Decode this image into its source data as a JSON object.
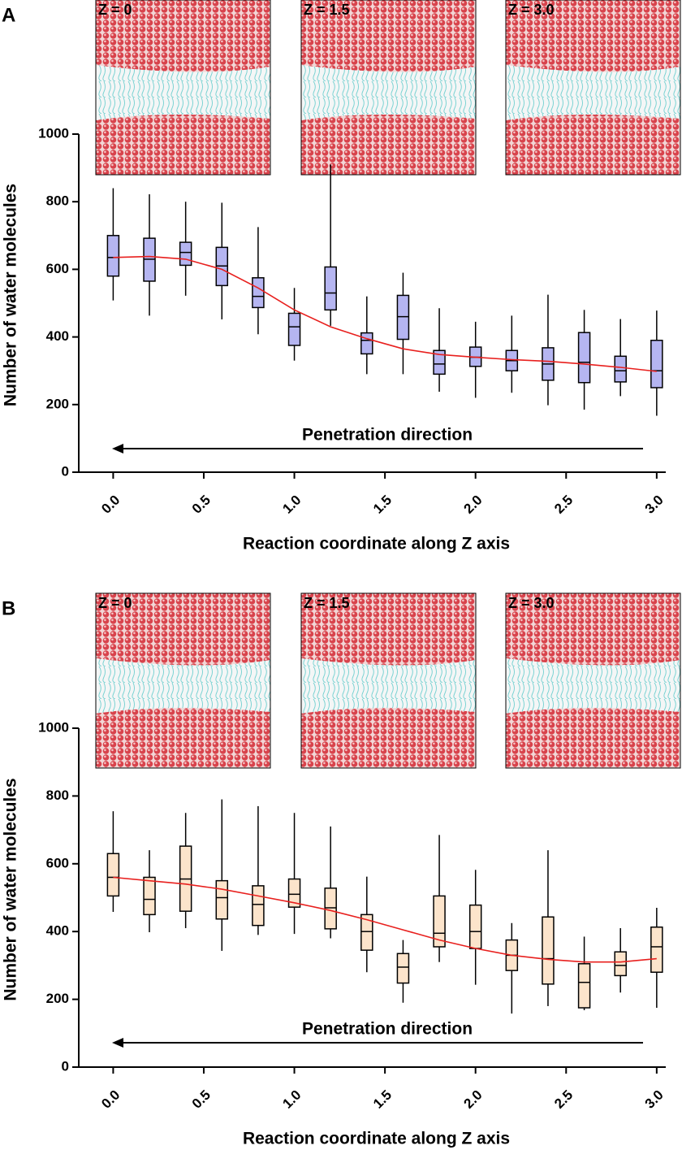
{
  "chart_data": [
    {
      "type": "box",
      "panel": "A",
      "insets": [
        "Z = 0",
        "Z = 1.5",
        "Z = 3.0"
      ],
      "annotation": "Penetration direction",
      "xlabel": "Reaction coordinate along Z axis",
      "ylabel": "Number of water molecules",
      "x": [
        0,
        0.2,
        0.4,
        0.6,
        0.8,
        1.0,
        1.2,
        1.4,
        1.6,
        1.8,
        2.0,
        2.2,
        2.4,
        2.6,
        2.8,
        3.0
      ],
      "min": [
        508,
        463,
        522,
        452,
        408,
        330,
        433,
        290,
        290,
        238,
        220,
        235,
        198,
        185,
        225,
        167
      ],
      "q1": [
        580,
        565,
        612,
        552,
        487,
        375,
        480,
        350,
        393,
        290,
        313,
        300,
        272,
        265,
        267,
        250
      ],
      "median": [
        635,
        630,
        650,
        610,
        520,
        430,
        530,
        390,
        460,
        320,
        340,
        330,
        320,
        325,
        300,
        300
      ],
      "q3": [
        700,
        692,
        680,
        665,
        575,
        470,
        607,
        412,
        523,
        360,
        370,
        360,
        368,
        413,
        343,
        390
      ],
      "max": [
        840,
        822,
        800,
        797,
        725,
        545,
        910,
        520,
        590,
        485,
        445,
        463,
        525,
        480,
        453,
        478
      ],
      "fit": [
        635,
        638,
        630,
        600,
        545,
        480,
        430,
        395,
        365,
        348,
        340,
        333,
        328,
        320,
        310,
        298
      ],
      "fit_color": "#e8201e",
      "point_color": "#2a2ad8",
      "xlim": [
        -0.19,
        3.05
      ],
      "xticks": [
        {
          "value": 0,
          "label": "0.0"
        },
        0.5,
        {
          "value": 1,
          "label": "1.0"
        },
        1.5,
        {
          "value": 2,
          "label": "2.0"
        },
        2.5,
        {
          "value": 3,
          "label": "3.0"
        }
      ],
      "ylim": [
        0,
        1000
      ],
      "yticks": [
        0,
        200,
        400,
        600,
        800,
        1000
      ]
    },
    {
      "type": "box",
      "panel": "B",
      "insets": [
        "Z = 0",
        "Z = 1.5",
        "Z = 3.0"
      ],
      "annotation": "Penetration direction",
      "xlabel": "Reaction coordinate along Z axis",
      "ylabel": "Number of water molecules",
      "x": [
        0,
        0.2,
        0.4,
        0.6,
        0.8,
        1.0,
        1.2,
        1.4,
        1.6,
        1.8,
        2.0,
        2.2,
        2.4,
        2.6,
        2.8,
        3.0
      ],
      "min": [
        458,
        398,
        410,
        343,
        390,
        393,
        380,
        280,
        190,
        310,
        243,
        158,
        180,
        168,
        220,
        175
      ],
      "q1": [
        505,
        450,
        460,
        437,
        418,
        472,
        408,
        345,
        248,
        355,
        350,
        285,
        245,
        175,
        270,
        280
      ],
      "median": [
        560,
        495,
        555,
        500,
        480,
        510,
        470,
        400,
        295,
        395,
        400,
        330,
        320,
        250,
        300,
        355
      ],
      "q3": [
        630,
        560,
        652,
        550,
        535,
        555,
        528,
        450,
        335,
        505,
        478,
        375,
        443,
        305,
        340,
        413
      ],
      "max": [
        755,
        640,
        750,
        790,
        770,
        750,
        710,
        562,
        375,
        685,
        582,
        425,
        640,
        385,
        410,
        470
      ],
      "fit": [
        560,
        550,
        540,
        525,
        505,
        485,
        462,
        435,
        405,
        375,
        350,
        330,
        318,
        310,
        310,
        320
      ],
      "fit_color": "#e8201e",
      "point_color": "#f5b26b",
      "xlim": [
        -0.19,
        3.05
      ],
      "xticks": [
        {
          "value": 0,
          "label": "0.0"
        },
        0.5,
        {
          "value": 1,
          "label": "1.0"
        },
        1.5,
        {
          "value": 2,
          "label": "2.0"
        },
        2.5,
        {
          "value": 3,
          "label": "3.0"
        }
      ],
      "ylim": [
        0,
        1000
      ],
      "yticks": [
        0,
        200,
        400,
        600,
        800,
        1000
      ]
    }
  ]
}
